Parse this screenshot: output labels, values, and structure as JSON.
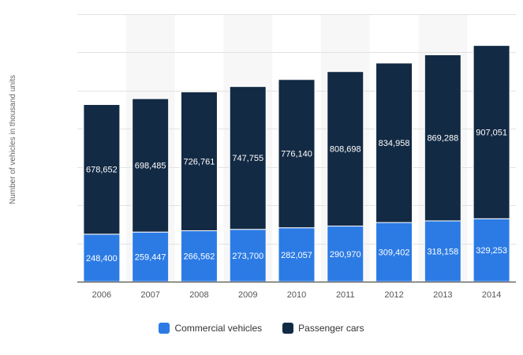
{
  "chart_data": {
    "type": "bar",
    "stacked": true,
    "categories": [
      "2006",
      "2007",
      "2008",
      "2009",
      "2010",
      "2011",
      "2012",
      "2013",
      "2014"
    ],
    "series": [
      {
        "name": "Commercial vehicles",
        "color": "#2c7be5",
        "values": [
          248400,
          259447,
          266562,
          273700,
          282057,
          290970,
          309402,
          318158,
          329253
        ],
        "labels": [
          "248,400",
          "259,447",
          "266,562",
          "273,700",
          "282,057",
          "290,970",
          "309,402",
          "318,158",
          "329,253"
        ]
      },
      {
        "name": "Passenger cars",
        "color": "#132a44",
        "values": [
          678652,
          698485,
          726761,
          747755,
          776140,
          808698,
          834958,
          869288,
          907051
        ],
        "labels": [
          "678,652",
          "698,485",
          "726,761",
          "747,755",
          "776,140",
          "808,698",
          "834,958",
          "869,288",
          "907,051"
        ]
      }
    ],
    "ylabel": "Number of vehicles in thousand units",
    "ylim": [
      0,
      1400000
    ],
    "grid": true,
    "legend_position": "bottom"
  }
}
